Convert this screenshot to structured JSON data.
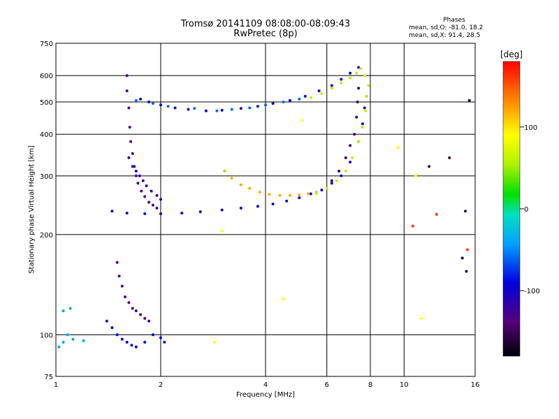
{
  "chart_data": {
    "type": "scatter",
    "title": "Tromsø 20141109 08:08:00-08:09:43",
    "subtitle": "RwPretec (8p)",
    "stats": {
      "heading": "Phases",
      "line_o": "mean, sd,O: -81.0, 18.2",
      "line_x": "mean, sd,X:  91.4, 28.5"
    },
    "xlabel": "Frequency [MHz]",
    "ylabel": "Stationary phase Virtual Height [km]",
    "x_scale": "log",
    "y_scale": "log",
    "xlim": [
      1,
      16
    ],
    "ylim": [
      75,
      750
    ],
    "x_ticks": [
      1,
      2,
      4,
      6,
      8,
      10,
      16
    ],
    "y_ticks": [
      75,
      100,
      200,
      300,
      400,
      500,
      600,
      750
    ],
    "grid": true,
    "colorbar": {
      "label": "[deg]",
      "min": -180,
      "max": 180,
      "ticks": [
        100,
        0,
        -100
      ]
    },
    "series": [
      {
        "color_value": -95,
        "points": [
          [
            1.75,
            510
          ],
          [
            1.85,
            500
          ],
          [
            2.0,
            490
          ],
          [
            2.2,
            480
          ],
          [
            2.4,
            475
          ],
          [
            2.7,
            470
          ],
          [
            3.0,
            472
          ],
          [
            3.4,
            478
          ],
          [
            3.8,
            485
          ],
          [
            4.2,
            495
          ],
          [
            4.7,
            505
          ],
          [
            5.2,
            520
          ],
          [
            5.7,
            540
          ],
          [
            6.2,
            560
          ],
          [
            6.6,
            585
          ],
          [
            7.0,
            610
          ],
          [
            7.4,
            635
          ]
        ]
      },
      {
        "color_value": -60,
        "points": [
          [
            1.7,
            505
          ],
          [
            1.9,
            495
          ],
          [
            2.1,
            485
          ],
          [
            2.5,
            478
          ],
          [
            2.9,
            470
          ],
          [
            3.2,
            475
          ],
          [
            3.6,
            480
          ],
          [
            4.0,
            490
          ],
          [
            4.5,
            500
          ],
          [
            5.0,
            510
          ]
        ]
      },
      {
        "color_value": -100,
        "points": [
          [
            1.45,
            235
          ],
          [
            1.6,
            232
          ],
          [
            1.8,
            231
          ],
          [
            2.0,
            231
          ],
          [
            2.3,
            232
          ],
          [
            2.6,
            234
          ],
          [
            3.0,
            237
          ],
          [
            3.4,
            240
          ],
          [
            3.8,
            243
          ],
          [
            4.2,
            247
          ],
          [
            4.6,
            252
          ],
          [
            5.0,
            258
          ],
          [
            5.4,
            265
          ],
          [
            5.8,
            272
          ],
          [
            6.2,
            285
          ],
          [
            6.6,
            300
          ],
          [
            7.0,
            330
          ],
          [
            7.4,
            380
          ],
          [
            7.6,
            430
          ],
          [
            7.7,
            480
          ],
          [
            7.8,
            520
          ]
        ]
      },
      {
        "color_value": -130,
        "points": [
          [
            1.6,
            600
          ],
          [
            1.6,
            540
          ],
          [
            1.62,
            480
          ],
          [
            1.63,
            420
          ],
          [
            1.64,
            380
          ],
          [
            1.66,
            350
          ],
          [
            1.68,
            320
          ],
          [
            1.7,
            300
          ],
          [
            1.72,
            285
          ],
          [
            1.76,
            270
          ],
          [
            1.8,
            260
          ],
          [
            1.85,
            250
          ],
          [
            1.9,
            245
          ],
          [
            1.95,
            240
          ]
        ]
      },
      {
        "color_value": -110,
        "points": [
          [
            1.62,
            340
          ],
          [
            1.66,
            320
          ],
          [
            1.7,
            310
          ],
          [
            1.74,
            300
          ],
          [
            1.78,
            290
          ],
          [
            1.82,
            280
          ],
          [
            1.88,
            270
          ],
          [
            1.95,
            262
          ],
          [
            2.0,
            255
          ]
        ]
      },
      {
        "color_value": 120,
        "points": [
          [
            3.05,
            310
          ],
          [
            3.2,
            295
          ],
          [
            3.4,
            282
          ],
          [
            3.6,
            275
          ],
          [
            3.85,
            268
          ],
          [
            4.1,
            264
          ],
          [
            4.4,
            262
          ],
          [
            4.7,
            262
          ],
          [
            5.0,
            263
          ],
          [
            5.3,
            265
          ],
          [
            5.6,
            268
          ]
        ]
      },
      {
        "color_value": 60,
        "points": [
          [
            5.6,
            265
          ],
          [
            6.0,
            275
          ],
          [
            6.4,
            290
          ],
          [
            6.8,
            310
          ],
          [
            7.1,
            340
          ],
          [
            7.4,
            380
          ],
          [
            7.6,
            420
          ],
          [
            7.75,
            470
          ],
          [
            7.8,
            520
          ],
          [
            7.9,
            560
          ],
          [
            7.7,
            600
          ],
          [
            7.5,
            630
          ],
          [
            7.3,
            610
          ],
          [
            7.0,
            590
          ],
          [
            6.6,
            570
          ],
          [
            6.2,
            550
          ],
          [
            5.8,
            530
          ],
          [
            5.4,
            515
          ]
        ]
      },
      {
        "color_value": -150,
        "points": [
          [
            6.2,
            290
          ],
          [
            6.5,
            310
          ],
          [
            6.8,
            340
          ],
          [
            7.0,
            370
          ],
          [
            7.2,
            400
          ],
          [
            7.3,
            450
          ],
          [
            7.35,
            500
          ],
          [
            7.4,
            550
          ]
        ]
      },
      {
        "color_value": -130,
        "points": [
          [
            1.5,
            165
          ],
          [
            1.52,
            150
          ],
          [
            1.55,
            140
          ],
          [
            1.58,
            130
          ],
          [
            1.62,
            125
          ],
          [
            1.66,
            120
          ],
          [
            1.7,
            118
          ],
          [
            1.75,
            115
          ],
          [
            1.8,
            112
          ],
          [
            1.85,
            110
          ]
        ]
      },
      {
        "color_value": -90,
        "points": [
          [
            1.4,
            110
          ],
          [
            1.45,
            105
          ],
          [
            1.5,
            100
          ],
          [
            1.55,
            97
          ],
          [
            1.6,
            95
          ],
          [
            1.65,
            93
          ],
          [
            1.7,
            92
          ],
          [
            1.8,
            95
          ],
          [
            1.9,
            100
          ],
          [
            2.0,
            98
          ],
          [
            2.05,
            95
          ]
        ]
      },
      {
        "color_value": -40,
        "points": [
          [
            1.02,
            92
          ],
          [
            1.05,
            95
          ],
          [
            1.08,
            100
          ],
          [
            1.12,
            97
          ],
          [
            1.05,
            118
          ],
          [
            1.1,
            120
          ],
          [
            1.2,
            96
          ]
        ]
      },
      {
        "color_value": 160,
        "points": [
          [
            10.6,
            212
          ],
          [
            12.4,
            230
          ],
          [
            15.2,
            180
          ]
        ]
      },
      {
        "color_value": 90,
        "points": [
          [
            5.1,
            440
          ],
          [
            9.6,
            365
          ],
          [
            10.8,
            300
          ],
          [
            3.0,
            205
          ],
          [
            4.5,
            128
          ],
          [
            2.85,
            95
          ],
          [
            11.2,
            112
          ]
        ]
      },
      {
        "color_value": -160,
        "points": [
          [
            11.8,
            320
          ],
          [
            13.5,
            340
          ],
          [
            15.0,
            235
          ],
          [
            15.1,
            155
          ],
          [
            14.7,
            170
          ],
          [
            15.4,
            505
          ]
        ]
      }
    ]
  }
}
